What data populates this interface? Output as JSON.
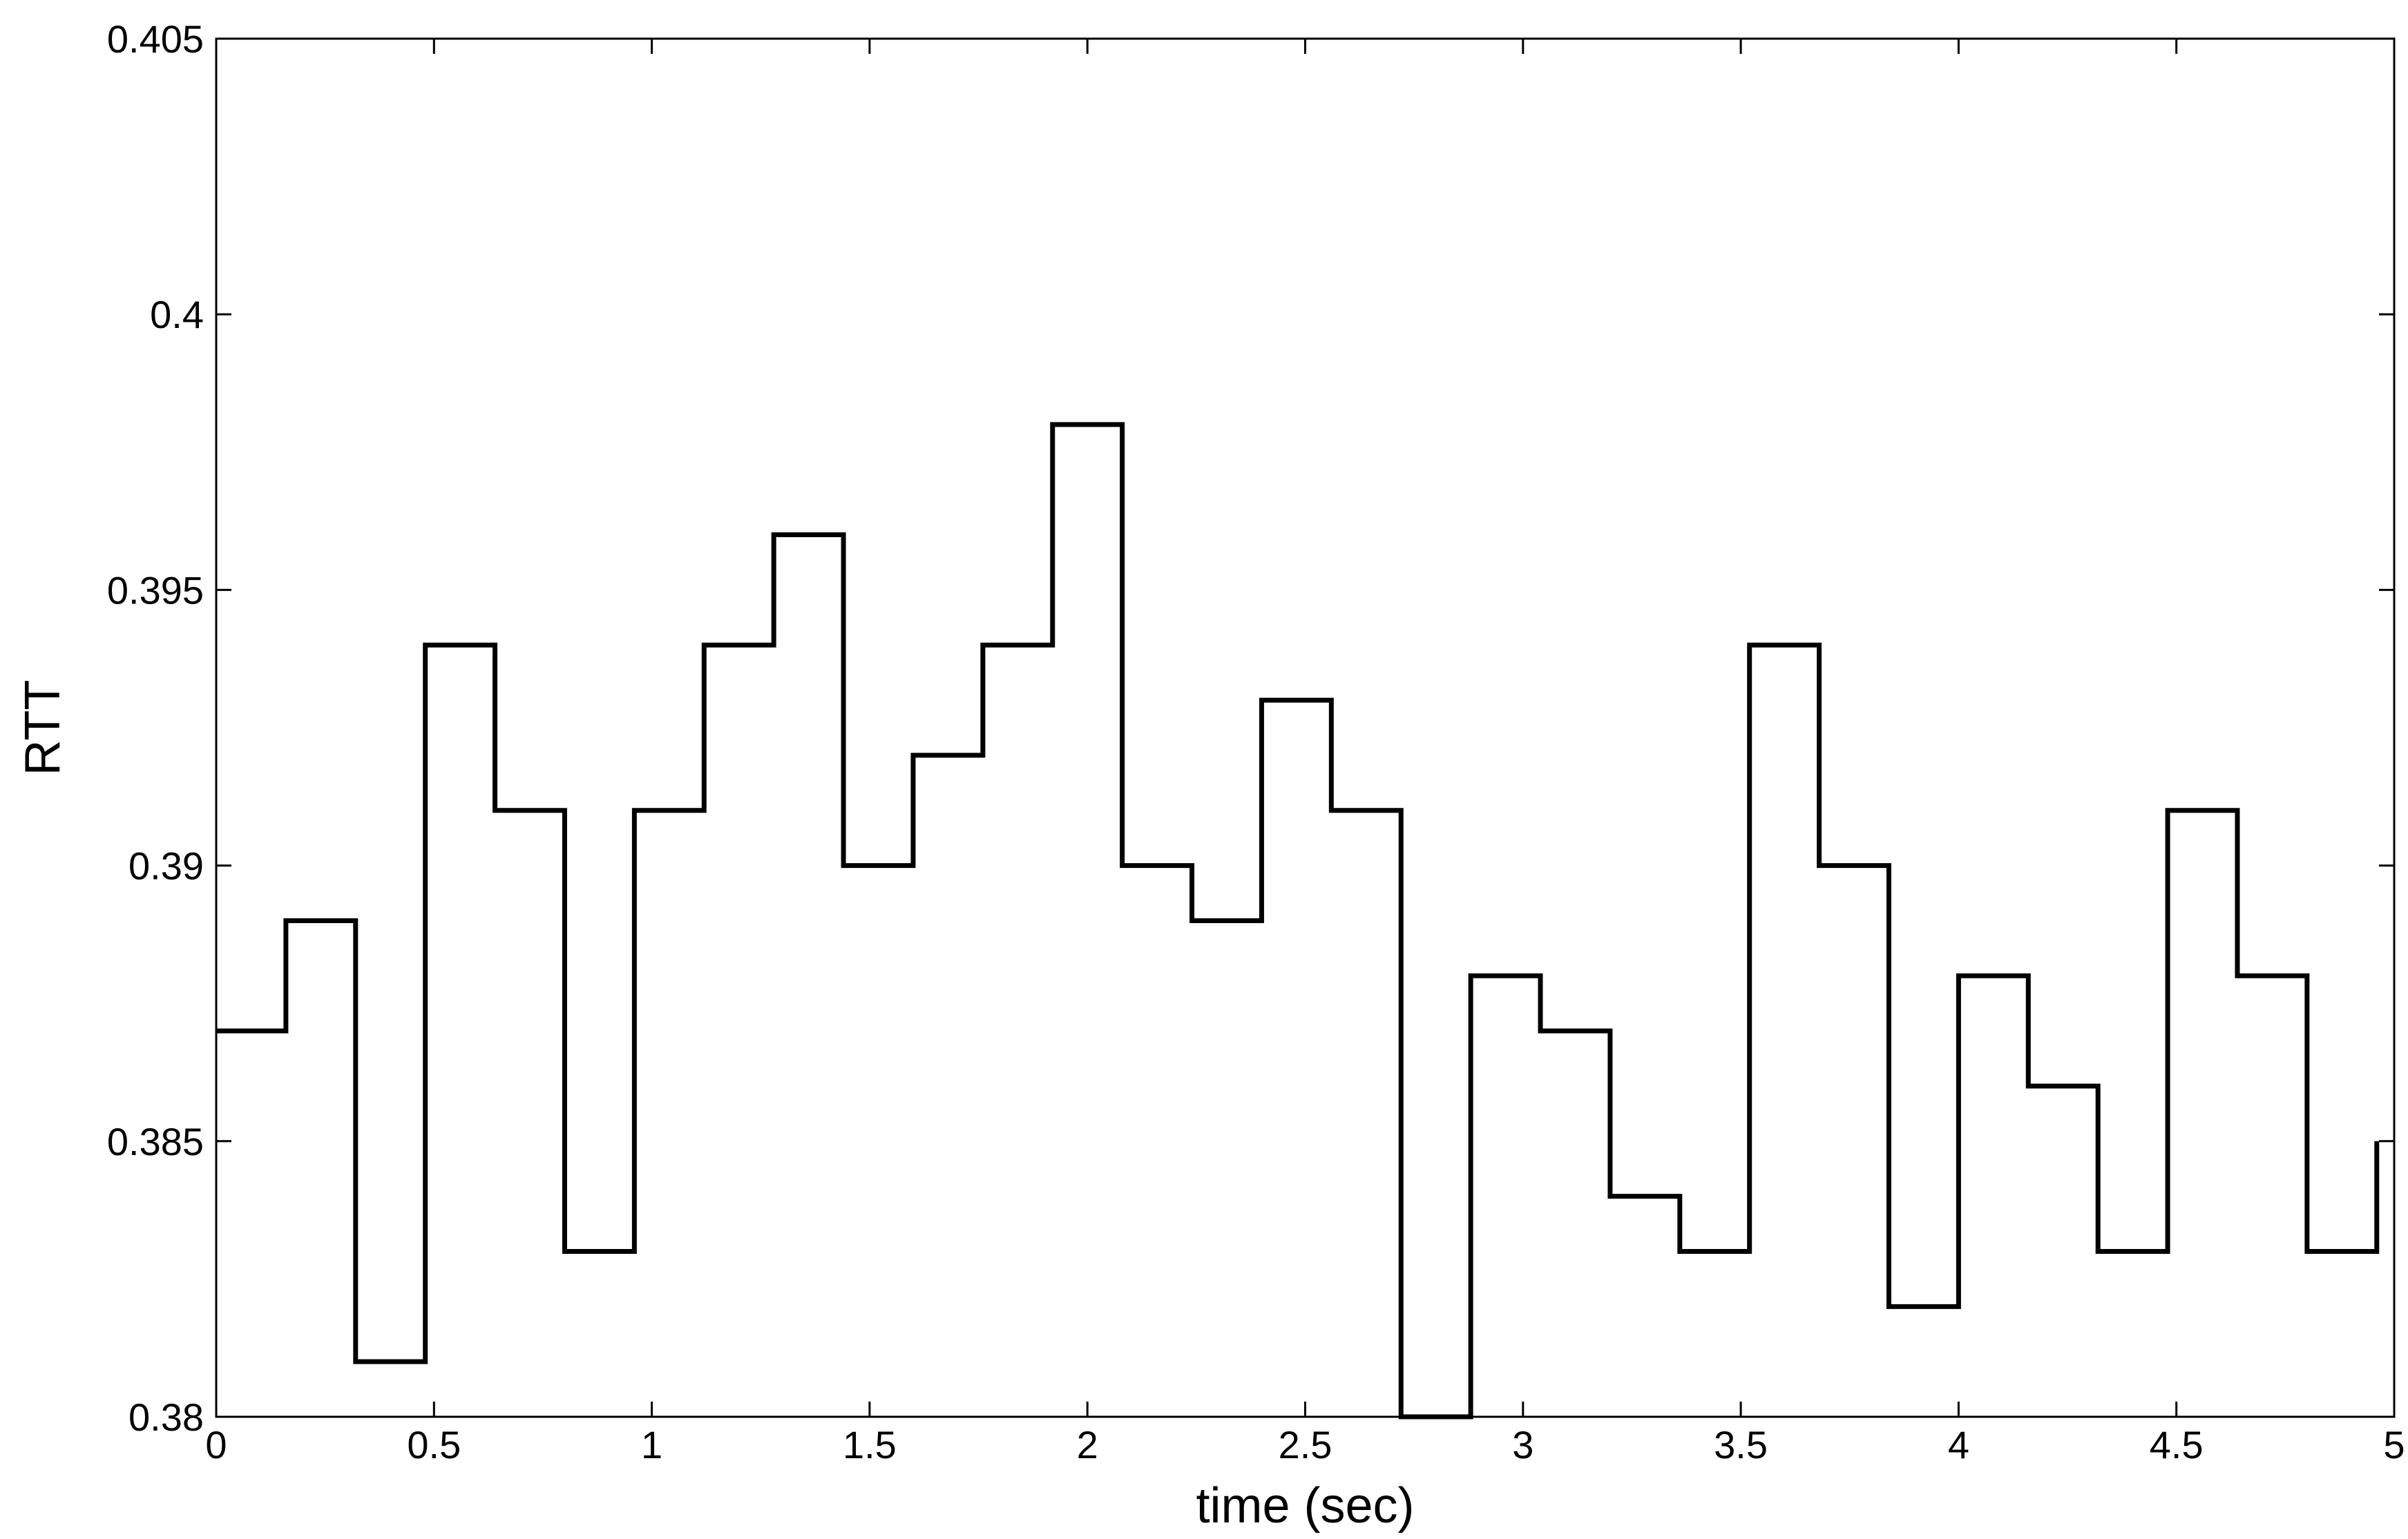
{
  "chart_data": {
    "type": "line",
    "step": true,
    "xlabel": "time (sec)",
    "ylabel": "RTT",
    "xlim": [
      0,
      5
    ],
    "ylim": [
      0.38,
      0.405
    ],
    "xticks": [
      {
        "value": 0,
        "label": "0"
      },
      {
        "value": 0.5,
        "label": "0.5"
      },
      {
        "value": 1,
        "label": "1"
      },
      {
        "value": 1.5,
        "label": "1.5"
      },
      {
        "value": 2,
        "label": "2"
      },
      {
        "value": 2.5,
        "label": "2.5"
      },
      {
        "value": 3,
        "label": "3"
      },
      {
        "value": 3.5,
        "label": "3.5"
      },
      {
        "value": 4,
        "label": "4"
      },
      {
        "value": 4.5,
        "label": "4.5"
      },
      {
        "value": 5,
        "label": "5"
      }
    ],
    "yticks": [
      {
        "value": 0.38,
        "label": "0.38"
      },
      {
        "value": 0.385,
        "label": "0.385"
      },
      {
        "value": 0.39,
        "label": "0.39"
      },
      {
        "value": 0.395,
        "label": "0.395"
      },
      {
        "value": 0.4,
        "label": "0.4"
      },
      {
        "value": 0.405,
        "label": "0.405"
      }
    ],
    "grid": false,
    "line_color": "#000000",
    "series": [
      {
        "x": [
          0,
          0.16,
          0.32,
          0.48,
          0.64,
          0.8,
          0.96,
          1.12,
          1.28,
          1.44,
          1.6,
          1.76,
          1.92,
          2.08,
          2.24,
          2.4,
          2.56,
          2.72,
          2.88,
          3.04,
          3.2,
          3.36,
          3.52,
          3.68,
          3.84,
          4.0,
          4.16,
          4.32,
          4.48,
          4.64,
          4.8,
          4.96
        ],
        "y": [
          0.387,
          0.389,
          0.381,
          0.394,
          0.391,
          0.383,
          0.391,
          0.394,
          0.396,
          0.39,
          0.392,
          0.394,
          0.398,
          0.39,
          0.389,
          0.393,
          0.391,
          0.38,
          0.388,
          0.387,
          0.384,
          0.383,
          0.394,
          0.39,
          0.382,
          0.388,
          0.386,
          0.383,
          0.391,
          0.388,
          0.383,
          0.385
        ],
        "x_end": 4.96
      }
    ]
  }
}
